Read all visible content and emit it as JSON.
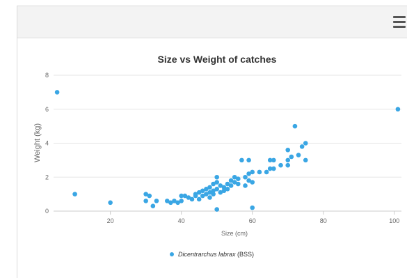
{
  "header": {
    "menu_icon": "hamburger-menu-icon"
  },
  "colors": {
    "series": "#3aa6e4",
    "grid": "#e6e6e6",
    "axis": "#cccccc"
  },
  "chart_data": {
    "type": "scatter",
    "title": "Size vs Weight of catches",
    "xlabel": "Size (cm)",
    "ylabel": "Weight (kg)",
    "xlim": [
      4,
      102
    ],
    "ylim": [
      0,
      8
    ],
    "x_ticks": [
      "20",
      "40",
      "60",
      "80",
      "100"
    ],
    "y_ticks": [
      "0",
      "2",
      "4",
      "6",
      "8"
    ],
    "grid": "horizontal",
    "legend_position": "bottom-center",
    "legend": {
      "italic": "Dicentrarchus labrax",
      "suffix": " (BSS)"
    },
    "series": [
      {
        "name": "Dicentrarchus labrax (BSS)",
        "points": [
          [
            5,
            7.0
          ],
          [
            10,
            1.0
          ],
          [
            20,
            0.5
          ],
          [
            30,
            1.0
          ],
          [
            30,
            0.6
          ],
          [
            31,
            0.9
          ],
          [
            32,
            0.3
          ],
          [
            33,
            0.6
          ],
          [
            36,
            0.6
          ],
          [
            37,
            0.5
          ],
          [
            38,
            0.6
          ],
          [
            39,
            0.5
          ],
          [
            40,
            0.9
          ],
          [
            40,
            0.6
          ],
          [
            41,
            0.9
          ],
          [
            42,
            0.8
          ],
          [
            43,
            0.7
          ],
          [
            44,
            0.9
          ],
          [
            44,
            1.0
          ],
          [
            45,
            0.7
          ],
          [
            45,
            1.1
          ],
          [
            46,
            1.2
          ],
          [
            46,
            0.9
          ],
          [
            47,
            1.0
          ],
          [
            47,
            1.3
          ],
          [
            48,
            1.1
          ],
          [
            48,
            0.8
          ],
          [
            48,
            1.4
          ],
          [
            49,
            1.2
          ],
          [
            49,
            1.0
          ],
          [
            49,
            1.6
          ],
          [
            50,
            2.0
          ],
          [
            50,
            1.7
          ],
          [
            50,
            1.3
          ],
          [
            50,
            0.1
          ],
          [
            51,
            1.5
          ],
          [
            51,
            1.1
          ],
          [
            52,
            1.4
          ],
          [
            52,
            1.2
          ],
          [
            53,
            1.6
          ],
          [
            53,
            1.3
          ],
          [
            54,
            1.8
          ],
          [
            54,
            1.5
          ],
          [
            55,
            2.0
          ],
          [
            55,
            1.7
          ],
          [
            56,
            1.9
          ],
          [
            56,
            1.6
          ],
          [
            57,
            3.0
          ],
          [
            58,
            2.0
          ],
          [
            58,
            1.5
          ],
          [
            59,
            2.2
          ],
          [
            59,
            1.8
          ],
          [
            59,
            3.0
          ],
          [
            60,
            2.3
          ],
          [
            60,
            1.7
          ],
          [
            60,
            0.2
          ],
          [
            62,
            2.3
          ],
          [
            64,
            2.3
          ],
          [
            65,
            2.5
          ],
          [
            65,
            3.0
          ],
          [
            66,
            2.5
          ],
          [
            66,
            3.0
          ],
          [
            68,
            2.7
          ],
          [
            70,
            3.0
          ],
          [
            70,
            3.6
          ],
          [
            70,
            2.7
          ],
          [
            71,
            3.2
          ],
          [
            72,
            5.0
          ],
          [
            73,
            3.3
          ],
          [
            74,
            3.8
          ],
          [
            75,
            4.0
          ],
          [
            75,
            3.0
          ],
          [
            101,
            6.0
          ]
        ]
      }
    ]
  }
}
